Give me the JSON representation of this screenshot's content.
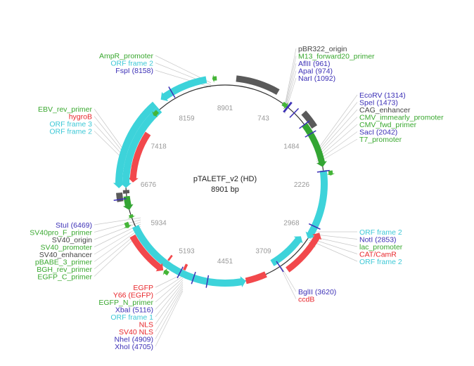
{
  "plasmid": {
    "name": "pTALETF_v2 (HD)",
    "length_label": "8901 bp",
    "length": 8901
  },
  "colors": {
    "backbone": "#333333",
    "orf": "#3dd3da",
    "origin": "#5a5a5a",
    "resistance": "#f2484c",
    "primer": "#45b538",
    "promoter": "#33a533",
    "enzyme": "#3b2fb6",
    "leader": "#c8c8c8"
  },
  "ticks": [
    {
      "text": "8901"
    },
    {
      "text": "743"
    },
    {
      "text": "1484"
    },
    {
      "text": "2226"
    },
    {
      "text": "2968"
    },
    {
      "text": "3709"
    },
    {
      "text": "4451"
    },
    {
      "text": "5193"
    },
    {
      "text": "5934"
    },
    {
      "text": "6676"
    },
    {
      "text": "7418"
    },
    {
      "text": "8159"
    }
  ],
  "label_groups": [
    {
      "name": "top-left",
      "labels": [
        {
          "text": "AmpR_promoter",
          "type": "primer"
        },
        {
          "text": "ORF frame 2",
          "type": "orf"
        },
        {
          "text": "FspI (8158)",
          "type": "enzyme"
        }
      ]
    },
    {
      "name": "top-right",
      "labels": [
        {
          "text": "pBR322_origin",
          "type": "misc"
        },
        {
          "text": "M13_forward20_primer",
          "type": "primer"
        },
        {
          "text": "AflII (961)",
          "type": "enzyme"
        },
        {
          "text": "ApaI (974)",
          "type": "enzyme"
        },
        {
          "text": "NarI (1092)",
          "type": "enzyme"
        }
      ]
    },
    {
      "name": "right-upper",
      "labels": [
        {
          "text": "EcoRV (1314)",
          "type": "enzyme"
        },
        {
          "text": "SpeI (1473)",
          "type": "enzyme"
        },
        {
          "text": "CAG_enhancer",
          "type": "misc"
        },
        {
          "text": "CMV_immearly_promoter",
          "type": "primer"
        },
        {
          "text": "CMV_fwd_primer",
          "type": "primer"
        },
        {
          "text": "SacI (2042)",
          "type": "enzyme"
        },
        {
          "text": "T7_promoter",
          "type": "primer"
        }
      ]
    },
    {
      "name": "left-upper",
      "labels": [
        {
          "text": "EBV_rev_primer",
          "type": "primer"
        },
        {
          "text": "hygroB",
          "type": "resistance"
        },
        {
          "text": "ORF frame 3",
          "type": "orf"
        },
        {
          "text": "ORF frame 2",
          "type": "orf"
        }
      ]
    },
    {
      "name": "right-lower",
      "labels": [
        {
          "text": "ORF frame 2",
          "type": "orf"
        },
        {
          "text": "NotI (2853)",
          "type": "enzyme"
        },
        {
          "text": "lac_promoter",
          "type": "primer"
        },
        {
          "text": "CAT/CamR",
          "type": "resistance"
        },
        {
          "text": "ORF frame 2",
          "type": "orf"
        }
      ]
    },
    {
      "name": "left-lower",
      "labels": [
        {
          "text": "StuI (6469)",
          "type": "enzyme"
        },
        {
          "text": "SV40pro_F_primer",
          "type": "primer"
        },
        {
          "text": "SV40_origin",
          "type": "misc"
        },
        {
          "text": "SV40_promoter",
          "type": "primer"
        },
        {
          "text": "SV40_enhancer",
          "type": "misc"
        },
        {
          "text": "pBABE_3_primer",
          "type": "primer"
        },
        {
          "text": "BGH_rev_primer",
          "type": "primer"
        },
        {
          "text": "EGFP_C_primer",
          "type": "primer"
        }
      ]
    },
    {
      "name": "bottom-right",
      "labels": [
        {
          "text": "BglII (3620)",
          "type": "enzyme"
        },
        {
          "text": "ccdB",
          "type": "resistance"
        }
      ]
    },
    {
      "name": "bottom-left",
      "labels": [
        {
          "text": "EGFP",
          "type": "resistance"
        },
        {
          "text": "Y66 (EGFP)",
          "type": "resistance"
        },
        {
          "text": "EGFP_N_primer",
          "type": "primer"
        },
        {
          "text": "XbaI (5116)",
          "type": "enzyme"
        },
        {
          "text": "ORF frame 1",
          "type": "orf"
        },
        {
          "text": "NLS",
          "type": "resistance"
        },
        {
          "text": "SV40 NLS",
          "type": "resistance"
        },
        {
          "text": "NheI (4909)",
          "type": "enzyme"
        },
        {
          "text": "XhoI (4705)",
          "type": "enzyme"
        }
      ]
    }
  ],
  "features": [
    {
      "name": "pBR322_origin",
      "type": "origin",
      "start": 150,
      "end": 740,
      "dir": 0,
      "ring": 1
    },
    {
      "name": "M13_forward20_primer",
      "type": "primer",
      "start": 880,
      "end": 960,
      "dir": 1,
      "ring": 0
    },
    {
      "name": "CAG_enhancer",
      "type": "origin",
      "start": 1180,
      "end": 1420,
      "dir": 0,
      "ring": 1
    },
    {
      "name": "CMV_immearly_promoter",
      "type": "promoter",
      "start": 1320,
      "end": 1980,
      "dir": 1,
      "ring": 0
    },
    {
      "name": "T7_promoter",
      "type": "primer",
      "start": 2045,
      "end": 2110,
      "dir": 1,
      "ring": 1
    },
    {
      "name": "ORF frame 2 (right)",
      "type": "orf",
      "start": 2030,
      "end": 3050,
      "dir": 1,
      "ring": 0
    },
    {
      "name": "lac_promoter",
      "type": "primer",
      "start": 3040,
      "end": 3110,
      "dir": 1,
      "ring": 1
    },
    {
      "name": "CAT/CamR",
      "type": "resistance",
      "start": 2900,
      "end": 3560,
      "dir": -1,
      "ring": 1
    },
    {
      "name": "ORF frame 2 (lower)",
      "type": "orf",
      "start": 3080,
      "end": 3690,
      "dir": -1,
      "ring": 2
    },
    {
      "name": "ccdB",
      "type": "resistance",
      "start": 3850,
      "end": 4150,
      "dir": 0,
      "ring": 0
    },
    {
      "name": "ORF frame 1",
      "type": "orf",
      "start": 4150,
      "end": 6050,
      "dir": -1,
      "ring": 0
    },
    {
      "name": "SV40 NLS",
      "type": "resistance",
      "start": 5060,
      "end": 5100,
      "dir": 0,
      "ring": 2
    },
    {
      "name": "EGFP_N_primer",
      "type": "primer",
      "start": 5250,
      "end": 5320,
      "dir": 1,
      "ring": 1
    },
    {
      "name": "EGFP",
      "type": "resistance",
      "start": 5330,
      "end": 5950,
      "dir": -1,
      "ring": 1
    },
    {
      "name": "Y66 (EGFP)",
      "type": "resistance",
      "start": 5340,
      "end": 5370,
      "dir": 0,
      "ring": 2
    },
    {
      "name": "EGFP_C_primer",
      "type": "primer",
      "start": 6070,
      "end": 6150,
      "dir": -1,
      "ring": 1
    },
    {
      "name": "BGH_rev_primer",
      "type": "primer",
      "start": 6180,
      "end": 6230,
      "dir": -1,
      "ring": 0
    },
    {
      "name": "SV40_enhancer",
      "type": "origin",
      "start": 6440,
      "end": 6560,
      "dir": 0,
      "ring": 1
    },
    {
      "name": "SV40_promoter",
      "type": "promoter",
      "start": 6300,
      "end": 6500,
      "dir": -1,
      "ring": 0
    },
    {
      "name": "SV40_origin",
      "type": "origin",
      "start": 6540,
      "end": 6590,
      "dir": 0,
      "ring": 0
    },
    {
      "name": "ORF frame 3",
      "type": "orf",
      "start": 6620,
      "end": 7880,
      "dir": -1,
      "ring": 1
    },
    {
      "name": "hygroB",
      "type": "resistance",
      "start": 6700,
      "end": 7500,
      "dir": -1,
      "ring": 2
    },
    {
      "name": "ORF frame 2 (left)",
      "type": "orf",
      "start": 6620,
      "end": 7880,
      "dir": -1,
      "ring": 0
    },
    {
      "name": "EBV_rev_primer",
      "type": "primer",
      "start": 7760,
      "end": 7840,
      "dir": -1,
      "ring": 0
    },
    {
      "name": "ORF frame 2 (top)",
      "type": "orf",
      "start": 7980,
      "end": 8650,
      "dir": -1,
      "ring": 1
    },
    {
      "name": "AmpR_promoter",
      "type": "primer",
      "start": 8730,
      "end": 8790,
      "dir": -1,
      "ring": 1
    }
  ],
  "enzyme_marks": [
    {
      "name": "FspI",
      "pos": 8158,
      "ring": 1
    },
    {
      "name": "AflII",
      "pos": 961,
      "ring": 0
    },
    {
      "name": "ApaI",
      "pos": 974,
      "ring": 0
    },
    {
      "name": "NarI",
      "pos": 1092,
      "ring": 0
    },
    {
      "name": "EcoRV",
      "pos": 1314,
      "ring": 0
    },
    {
      "name": "SpeI",
      "pos": 1473,
      "ring": 0
    },
    {
      "name": "SacI",
      "pos": 2042,
      "ring": 0
    },
    {
      "name": "NotI",
      "pos": 2853,
      "ring": 0
    },
    {
      "name": "BglII",
      "pos": 3620,
      "ring": 0
    },
    {
      "name": "XhoI",
      "pos": 4705,
      "ring": 0
    },
    {
      "name": "NheI",
      "pos": 4909,
      "ring": 0
    },
    {
      "name": "XbaI",
      "pos": 5116,
      "ring": 0
    },
    {
      "name": "StuI",
      "pos": 6469,
      "ring": 1
    }
  ]
}
